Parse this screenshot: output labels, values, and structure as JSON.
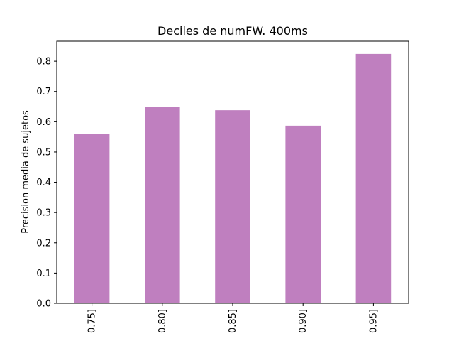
{
  "chart_data": {
    "type": "bar",
    "title": "Deciles de numFW. 400ms",
    "xlabel": "",
    "ylabel": "Precision media de sujetos",
    "categories": [
      "0.75]",
      "0.80]",
      "0.85]",
      "0.90]",
      "0.95]"
    ],
    "values": [
      0.56,
      0.648,
      0.638,
      0.587,
      0.824
    ],
    "ylim": [
      0,
      0.866
    ],
    "yticks": [
      0.0,
      0.1,
      0.2,
      0.3,
      0.4,
      0.5,
      0.6,
      0.7,
      0.8
    ],
    "ytick_labels": [
      "0.0",
      "0.1",
      "0.2",
      "0.3",
      "0.4",
      "0.5",
      "0.6",
      "0.7",
      "0.8"
    ],
    "bar_color": "#bf7fbf",
    "grid": false,
    "legend": "none"
  }
}
